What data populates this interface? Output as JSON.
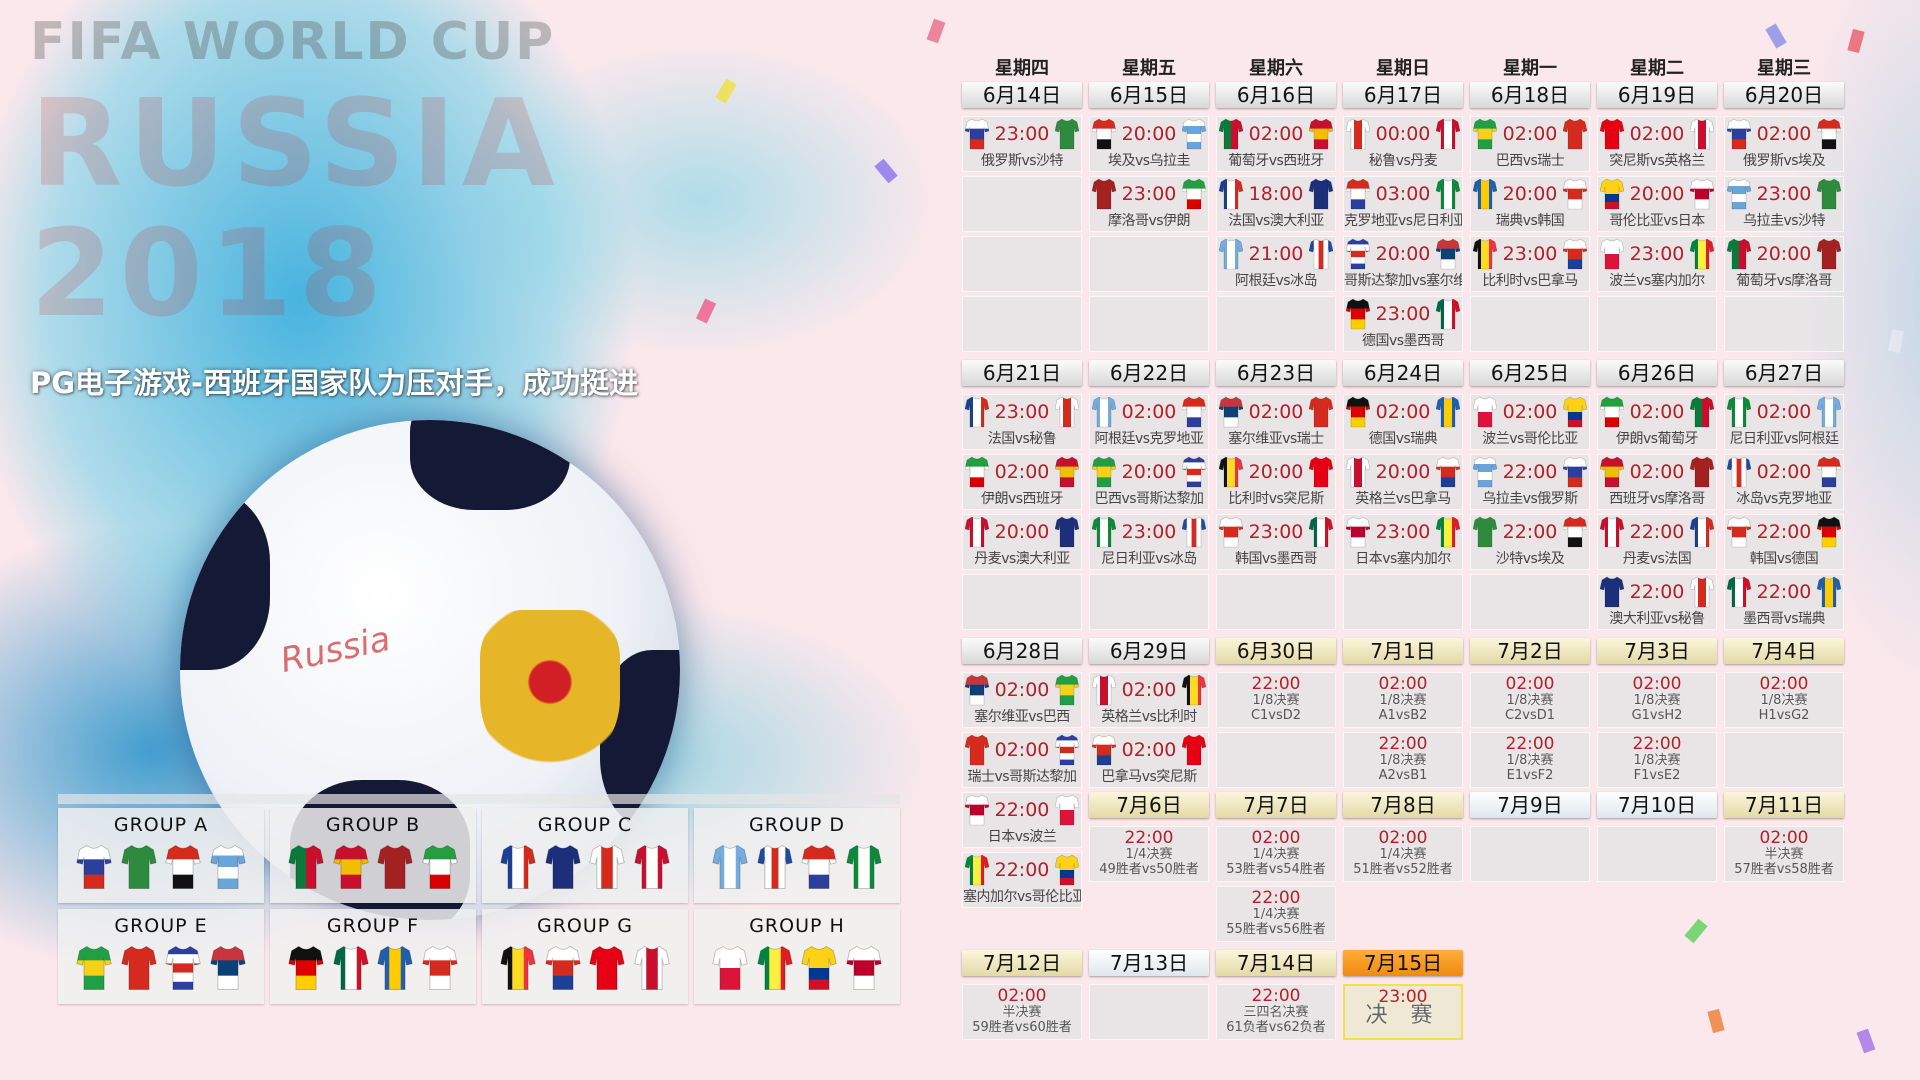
{
  "title": "PG电子游戏-西班牙国家队力压对手，成功挺进",
  "watermark": "FIFA WORLD CUP",
  "watermark2": "RUSSIA 2018",
  "ball_text": "Russia",
  "colors": {
    "time": "#b3202a",
    "final_header": "#f08a10",
    "background": "#fbe8ec"
  },
  "weekdays": [
    "星期四",
    "星期五",
    "星期六",
    "星期日",
    "星期一",
    "星期二",
    "星期三"
  ],
  "teams": {
    "俄罗斯": {
      "dir": "h",
      "c": [
        "#ffffff",
        "#2c3f9c",
        "#d52b1e"
      ]
    },
    "沙特": {
      "dir": "h",
      "c": [
        "#2e8b3e"
      ]
    },
    "埃及": {
      "dir": "h",
      "c": [
        "#d52b1e",
        "#ffffff",
        "#111111"
      ]
    },
    "乌拉圭": {
      "dir": "h",
      "c": [
        "#ffffff",
        "#6aa5d9",
        "#ffffff",
        "#6aa5d9"
      ]
    },
    "摩洛哥": {
      "dir": "h",
      "c": [
        "#a32121"
      ]
    },
    "伊朗": {
      "dir": "h",
      "c": [
        "#239f40",
        "#ffffff",
        "#da0000"
      ]
    },
    "葡萄牙": {
      "dir": "v",
      "c": [
        "#0a7a3a",
        "#c8102e"
      ]
    },
    "西班牙": {
      "dir": "h",
      "c": [
        "#c8102e",
        "#f1bf00",
        "#c8102e"
      ]
    },
    "法国": {
      "dir": "v",
      "c": [
        "#1c3f94",
        "#ffffff",
        "#d52b1e"
      ]
    },
    "澳大利亚": {
      "dir": "h",
      "c": [
        "#1d2f7a"
      ]
    },
    "秘鲁": {
      "dir": "v",
      "c": [
        "#ffffff",
        "#d52b1e",
        "#ffffff"
      ]
    },
    "丹麦": {
      "dir": "v",
      "c": [
        "#c8102e",
        "#ffffff",
        "#c8102e"
      ]
    },
    "阿根廷": {
      "dir": "v",
      "c": [
        "#74acdf",
        "#ffffff",
        "#74acdf"
      ]
    },
    "冰岛": {
      "dir": "v",
      "c": [
        "#1f4aa0",
        "#ffffff",
        "#d52b1e",
        "#ffffff",
        "#1f4aa0"
      ]
    },
    "克罗地亚": {
      "dir": "h",
      "c": [
        "#d52b1e",
        "#ffffff",
        "#2c3f9c"
      ]
    },
    "尼日利亚": {
      "dir": "v",
      "c": [
        "#0a8a3a",
        "#ffffff",
        "#0a8a3a"
      ]
    },
    "巴西": {
      "dir": "h",
      "c": [
        "#229e45",
        "#f7d117",
        "#229e45"
      ]
    },
    "瑞士": {
      "dir": "h",
      "c": [
        "#d52b1e"
      ]
    },
    "哥斯达黎加": {
      "dir": "h",
      "c": [
        "#2c3f9c",
        "#ffffff",
        "#d52b1e",
        "#ffffff",
        "#2c3f9c"
      ]
    },
    "塞尔维亚": {
      "dir": "h",
      "c": [
        "#c6363c",
        "#0c4076",
        "#ffffff"
      ]
    },
    "德国": {
      "dir": "h",
      "c": [
        "#111111",
        "#dd0000",
        "#ffce00"
      ]
    },
    "墨西哥": {
      "dir": "v",
      "c": [
        "#006847",
        "#ffffff",
        "#ce1126"
      ]
    },
    "瑞典": {
      "dir": "v",
      "c": [
        "#1f5fae",
        "#fecc00",
        "#1f5fae"
      ]
    },
    "韩国": {
      "dir": "h",
      "c": [
        "#ffffff",
        "#d52b1e",
        "#ffffff"
      ]
    },
    "比利时": {
      "dir": "v",
      "c": [
        "#111111",
        "#fdda24",
        "#ef3340"
      ]
    },
    "巴拿马": {
      "dir": "h",
      "c": [
        "#ffffff",
        "#d52b1e",
        "#1d3f94"
      ]
    },
    "突尼斯": {
      "dir": "h",
      "c": [
        "#e70013"
      ]
    },
    "英格兰": {
      "dir": "v",
      "c": [
        "#ffffff",
        "#c8102e",
        "#ffffff"
      ]
    },
    "波兰": {
      "dir": "h",
      "c": [
        "#ffffff",
        "#dc143c"
      ]
    },
    "塞内加尔": {
      "dir": "v",
      "c": [
        "#00853f",
        "#fdef42",
        "#e31b23"
      ]
    },
    "哥伦比亚": {
      "dir": "h",
      "c": [
        "#fcd116",
        "#fcd116",
        "#003893",
        "#ce1126"
      ]
    },
    "日本": {
      "dir": "h",
      "c": [
        "#ffffff",
        "#bc002d",
        "#ffffff"
      ]
    }
  },
  "weeks": [
    [
      [
        {
          "date": "6月14日"
        },
        {
          "time": "23:00",
          "home": "俄罗斯",
          "away": "沙特",
          "label": "俄罗斯vs沙特"
        },
        {
          "empty": true
        },
        {
          "empty": true
        },
        {
          "empty": true
        }
      ],
      [
        {
          "date": "6月15日"
        },
        {
          "time": "20:00",
          "home": "埃及",
          "away": "乌拉圭",
          "label": "埃及vs乌拉圭"
        },
        {
          "time": "23:00",
          "home": "摩洛哥",
          "away": "伊朗",
          "label": "摩洛哥vs伊朗"
        },
        {
          "empty": true
        },
        {
          "empty": true
        }
      ],
      [
        {
          "date": "6月16日"
        },
        {
          "time": "02:00",
          "home": "葡萄牙",
          "away": "西班牙",
          "label": "葡萄牙vs西班牙"
        },
        {
          "time": "18:00",
          "home": "法国",
          "away": "澳大利亚",
          "label": "法国vs澳大利亚"
        },
        {
          "time": "21:00",
          "home": "阿根廷",
          "away": "冰岛",
          "label": "阿根廷vs冰岛"
        },
        {
          "empty": true
        }
      ],
      [
        {
          "date": "6月17日"
        },
        {
          "time": "00:00",
          "home": "秘鲁",
          "away": "丹麦",
          "label": "秘鲁vs丹麦"
        },
        {
          "time": "03:00",
          "home": "克罗地亚",
          "away": "尼日利亚",
          "label": "克罗地亚vs尼日利亚"
        },
        {
          "time": "20:00",
          "home": "哥斯达黎加",
          "away": "塞尔维亚",
          "label": "哥斯达黎加vs塞尔维亚"
        },
        {
          "time": "23:00",
          "home": "德国",
          "away": "墨西哥",
          "label": "德国vs墨西哥"
        }
      ],
      [
        {
          "date": "6月18日"
        },
        {
          "time": "02:00",
          "home": "巴西",
          "away": "瑞士",
          "label": "巴西vs瑞士"
        },
        {
          "time": "20:00",
          "home": "瑞典",
          "away": "韩国",
          "label": "瑞典vs韩国"
        },
        {
          "time": "23:00",
          "home": "比利时",
          "away": "巴拿马",
          "label": "比利时vs巴拿马"
        },
        {
          "empty": true
        }
      ],
      [
        {
          "date": "6月19日"
        },
        {
          "time": "02:00",
          "home": "突尼斯",
          "away": "英格兰",
          "label": "突尼斯vs英格兰"
        },
        {
          "time": "20:00",
          "home": "哥伦比亚",
          "away": "日本",
          "label": "哥伦比亚vs日本"
        },
        {
          "time": "23:00",
          "home": "波兰",
          "away": "塞内加尔",
          "label": "波兰vs塞内加尔"
        },
        {
          "empty": true
        }
      ],
      [
        {
          "date": "6月20日"
        },
        {
          "time": "02:00",
          "home": "俄罗斯",
          "away": "埃及",
          "label": "俄罗斯vs埃及"
        },
        {
          "time": "23:00",
          "home": "乌拉圭",
          "away": "沙特",
          "label": "乌拉圭vs沙特"
        },
        {
          "time": "20:00",
          "home": "葡萄牙",
          "away": "摩洛哥",
          "label": "葡萄牙vs摩洛哥"
        },
        {
          "empty": true
        }
      ]
    ],
    [
      [
        {
          "date": "6月21日"
        },
        {
          "time": "23:00",
          "home": "法国",
          "away": "秘鲁",
          "label": "法国vs秘鲁"
        },
        {
          "time": "02:00",
          "home": "伊朗",
          "away": "西班牙",
          "label": "伊朗vs西班牙"
        },
        {
          "time": "20:00",
          "home": "丹麦",
          "away": "澳大利亚",
          "label": "丹麦vs澳大利亚"
        },
        {
          "empty": true
        }
      ],
      [
        {
          "date": "6月22日"
        },
        {
          "time": "02:00",
          "home": "阿根廷",
          "away": "克罗地亚",
          "label": "阿根廷vs克罗地亚"
        },
        {
          "time": "20:00",
          "home": "巴西",
          "away": "哥斯达黎加",
          "label": "巴西vs哥斯达黎加"
        },
        {
          "time": "23:00",
          "home": "尼日利亚",
          "away": "冰岛",
          "label": "尼日利亚vs冰岛"
        },
        {
          "empty": true
        }
      ],
      [
        {
          "date": "6月23日"
        },
        {
          "time": "02:00",
          "home": "塞尔维亚",
          "away": "瑞士",
          "label": "塞尔维亚vs瑞士"
        },
        {
          "time": "20:00",
          "home": "比利时",
          "away": "突尼斯",
          "label": "比利时vs突尼斯"
        },
        {
          "time": "23:00",
          "home": "韩国",
          "away": "墨西哥",
          "label": "韩国vs墨西哥"
        },
        {
          "empty": true
        }
      ],
      [
        {
          "date": "6月24日"
        },
        {
          "time": "02:00",
          "home": "德国",
          "away": "瑞典",
          "label": "德国vs瑞典"
        },
        {
          "time": "20:00",
          "home": "英格兰",
          "away": "巴拿马",
          "label": "英格兰vs巴拿马"
        },
        {
          "time": "23:00",
          "home": "日本",
          "away": "塞内加尔",
          "label": "日本vs塞内加尔"
        },
        {
          "empty": true
        }
      ],
      [
        {
          "date": "6月25日"
        },
        {
          "time": "02:00",
          "home": "波兰",
          "away": "哥伦比亚",
          "label": "波兰vs哥伦比亚"
        },
        {
          "time": "22:00",
          "home": "乌拉圭",
          "away": "俄罗斯",
          "label": "乌拉圭vs俄罗斯"
        },
        {
          "time": "22:00",
          "home": "沙特",
          "away": "埃及",
          "label": "沙特vs埃及"
        },
        {
          "empty": true
        }
      ],
      [
        {
          "date": "6月26日"
        },
        {
          "time": "02:00",
          "home": "伊朗",
          "away": "葡萄牙",
          "label": "伊朗vs葡萄牙"
        },
        {
          "time": "02:00",
          "home": "西班牙",
          "away": "摩洛哥",
          "label": "西班牙vs摩洛哥"
        },
        {
          "time": "22:00",
          "home": "丹麦",
          "away": "法国",
          "label": "丹麦vs法国"
        },
        {
          "time": "22:00",
          "home": "澳大利亚",
          "away": "秘鲁",
          "label": "澳大利亚vs秘鲁"
        }
      ],
      [
        {
          "date": "6月27日"
        },
        {
          "time": "02:00",
          "home": "尼日利亚",
          "away": "阿根廷",
          "label": "尼日利亚vs阿根廷"
        },
        {
          "time": "02:00",
          "home": "冰岛",
          "away": "克罗地亚",
          "label": "冰岛vs克罗地亚"
        },
        {
          "time": "22:00",
          "home": "韩国",
          "away": "德国",
          "label": "韩国vs德国"
        },
        {
          "time": "22:00",
          "home": "墨西哥",
          "away": "瑞典",
          "label": "墨西哥vs瑞典"
        }
      ]
    ],
    [
      [
        {
          "date": "6月28日"
        },
        {
          "time": "02:00",
          "home": "塞尔维亚",
          "away": "巴西",
          "label": "塞尔维亚vs巴西"
        },
        {
          "time": "02:00",
          "home": "瑞士",
          "away": "哥斯达黎加",
          "label": "瑞士vs哥斯达黎加"
        },
        {
          "time": "22:00",
          "home": "日本",
          "away": "波兰",
          "label": "日本vs波兰"
        },
        {
          "time": "22:00",
          "home": "塞内加尔",
          "away": "哥伦比亚",
          "label": "塞内加尔vs哥伦比亚"
        }
      ],
      [
        {
          "date": "6月29日"
        },
        {
          "time": "02:00",
          "home": "英格兰",
          "away": "比利时",
          "label": "英格兰vs比利时"
        },
        {
          "time": "02:00",
          "home": "巴拿马",
          "away": "突尼斯",
          "label": "巴拿马vs突尼斯"
        },
        {
          "date": "7月6日",
          "ko": true
        },
        {
          "ko": true,
          "time": "22:00",
          "stage": "1/4决赛",
          "pair": "49胜者vs50胜者"
        }
      ],
      [
        {
          "date": "6月30日",
          "ko": true
        },
        {
          "ko": true,
          "time": "22:00",
          "stage": "1/8决赛",
          "pair": "C1vsD2"
        },
        {
          "empty": true
        },
        {
          "date": "7月7日",
          "ko": true
        },
        {
          "ko": true,
          "time": "02:00",
          "stage": "1/4决赛",
          "pair": "53胜者vs54胜者"
        },
        {
          "ko": true,
          "time": "22:00",
          "stage": "1/4决赛",
          "pair": "55胜者vs56胜者"
        }
      ],
      [
        {
          "date": "7月1日",
          "ko": true
        },
        {
          "ko": true,
          "time": "02:00",
          "stage": "1/8决赛",
          "pair": "A1vsB2"
        },
        {
          "ko": true,
          "time": "22:00",
          "stage": "1/8决赛",
          "pair": "A2vsB1"
        },
        {
          "date": "7月8日",
          "ko": true
        },
        {
          "ko": true,
          "time": "02:00",
          "stage": "1/4决赛",
          "pair": "51胜者vs52胜者"
        }
      ],
      [
        {
          "date": "7月2日",
          "ko": true
        },
        {
          "ko": true,
          "time": "02:00",
          "stage": "1/8决赛",
          "pair": "C2vsD1"
        },
        {
          "ko": true,
          "time": "22:00",
          "stage": "1/8决赛",
          "pair": "E1vsF2"
        },
        {
          "date": "7月9日",
          "pale": true
        },
        {
          "empty": true
        }
      ],
      [
        {
          "date": "7月3日",
          "ko": true
        },
        {
          "ko": true,
          "time": "02:00",
          "stage": "1/8决赛",
          "pair": "G1vsH2"
        },
        {
          "ko": true,
          "time": "22:00",
          "stage": "1/8决赛",
          "pair": "F1vsE2"
        },
        {
          "date": "7月10日",
          "pale": true
        },
        {
          "empty": true
        }
      ],
      [
        {
          "date": "7月4日",
          "ko": true
        },
        {
          "ko": true,
          "time": "02:00",
          "stage": "1/8决赛",
          "pair": "H1vsG2"
        },
        {
          "empty": true
        },
        {
          "date": "7月11日",
          "ko": true
        },
        {
          "ko": true,
          "time": "02:00",
          "stage": "半决赛",
          "pair": "57胜者vs58胜者"
        }
      ]
    ],
    [
      [
        {
          "date": "7月12日",
          "ko": true
        },
        {
          "ko": true,
          "time": "02:00",
          "stage": "半决赛",
          "pair": "59胜者vs60胜者"
        }
      ],
      [
        {
          "date": "7月13日",
          "pale": true
        },
        {
          "empty": true
        }
      ],
      [
        {
          "date": "7月14日",
          "ko": true
        },
        {
          "ko": true,
          "time": "22:00",
          "stage": "三四名决赛",
          "pair": "61负者vs62负者"
        }
      ],
      [
        {
          "date": "7月15日",
          "final": true
        },
        {
          "ko": true,
          "final": true,
          "time": "23:00",
          "stage": "决 赛"
        }
      ]
    ]
  ],
  "groups": [
    {
      "label": "GROUP A",
      "teams": [
        "俄罗斯",
        "沙特",
        "埃及",
        "乌拉圭"
      ]
    },
    {
      "label": "GROUP B",
      "teams": [
        "葡萄牙",
        "西班牙",
        "摩洛哥",
        "伊朗"
      ]
    },
    {
      "label": "GROUP C",
      "teams": [
        "法国",
        "澳大利亚",
        "秘鲁",
        "丹麦"
      ]
    },
    {
      "label": "GROUP D",
      "teams": [
        "阿根廷",
        "冰岛",
        "克罗地亚",
        "尼日利亚"
      ]
    },
    {
      "label": "GROUP E",
      "teams": [
        "巴西",
        "瑞士",
        "哥斯达黎加",
        "塞尔维亚"
      ]
    },
    {
      "label": "GROUP F",
      "teams": [
        "德国",
        "墨西哥",
        "瑞典",
        "韩国"
      ]
    },
    {
      "label": "GROUP G",
      "teams": [
        "比利时",
        "巴拿马",
        "突尼斯",
        "英格兰"
      ]
    },
    {
      "label": "GROUP H",
      "teams": [
        "波兰",
        "塞内加尔",
        "哥伦比亚",
        "日本"
      ]
    }
  ]
}
